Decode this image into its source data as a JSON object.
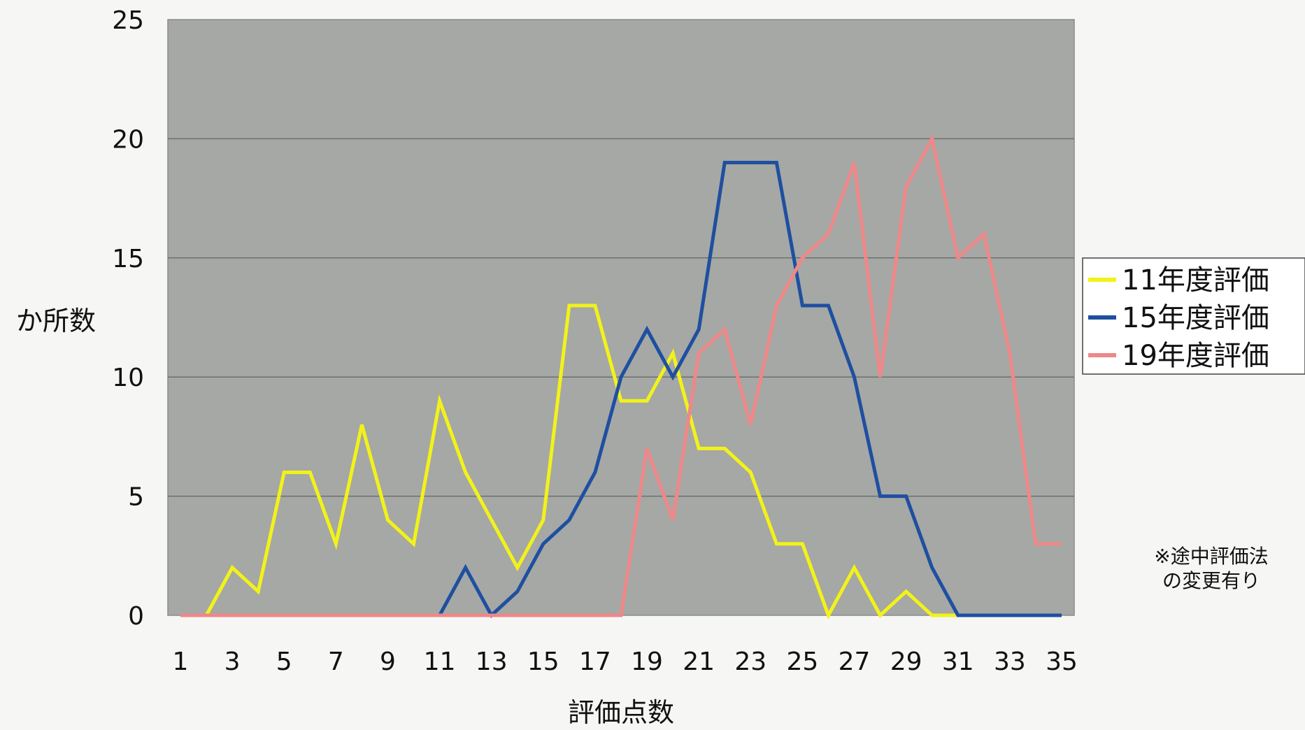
{
  "chart_data": {
    "type": "line",
    "title": "",
    "xlabel": "評価点数",
    "ylabel": "か所数",
    "x": [
      1,
      2,
      3,
      4,
      5,
      6,
      7,
      8,
      9,
      10,
      11,
      12,
      13,
      14,
      15,
      16,
      17,
      18,
      19,
      20,
      21,
      22,
      23,
      24,
      25,
      26,
      27,
      28,
      29,
      30,
      31,
      32,
      33,
      34,
      35
    ],
    "x_tick_labels": [
      "1",
      "3",
      "5",
      "7",
      "9",
      "11",
      "13",
      "15",
      "17",
      "19",
      "21",
      "23",
      "25",
      "27",
      "29",
      "31",
      "33",
      "35"
    ],
    "y_tick_labels": [
      "0",
      "5",
      "10",
      "15",
      "20",
      "25"
    ],
    "ylim": [
      0,
      25
    ],
    "grid": true,
    "legend_position": "right",
    "series": [
      {
        "name": "11年度評価",
        "color": "#f2f21a",
        "values": [
          0,
          0,
          2,
          1,
          6,
          6,
          3,
          8,
          4,
          3,
          9,
          6,
          4,
          2,
          4,
          13,
          13,
          9,
          9,
          11,
          7,
          7,
          6,
          3,
          3,
          0,
          2,
          0,
          1,
          0,
          0,
          null,
          null,
          null,
          null
        ]
      },
      {
        "name": "15年度評価",
        "color": "#1f4fa0",
        "values": [
          null,
          null,
          null,
          null,
          null,
          null,
          null,
          null,
          null,
          null,
          0,
          2,
          0,
          1,
          3,
          4,
          6,
          10,
          12,
          10,
          12,
          19,
          19,
          19,
          13,
          13,
          10,
          5,
          5,
          2,
          0,
          0,
          0,
          0,
          0
        ]
      },
      {
        "name": "19年度評価",
        "color": "#ee8888",
        "values": [
          0,
          0,
          0,
          0,
          0,
          0,
          0,
          0,
          0,
          0,
          0,
          0,
          0,
          0,
          0,
          0,
          0,
          0,
          7,
          4,
          11,
          12,
          8,
          13,
          15,
          16,
          19,
          10,
          18,
          20,
          15,
          16,
          11,
          3,
          3
        ]
      }
    ],
    "annotation": [
      "※途中評価法",
      "の変更有り"
    ]
  }
}
